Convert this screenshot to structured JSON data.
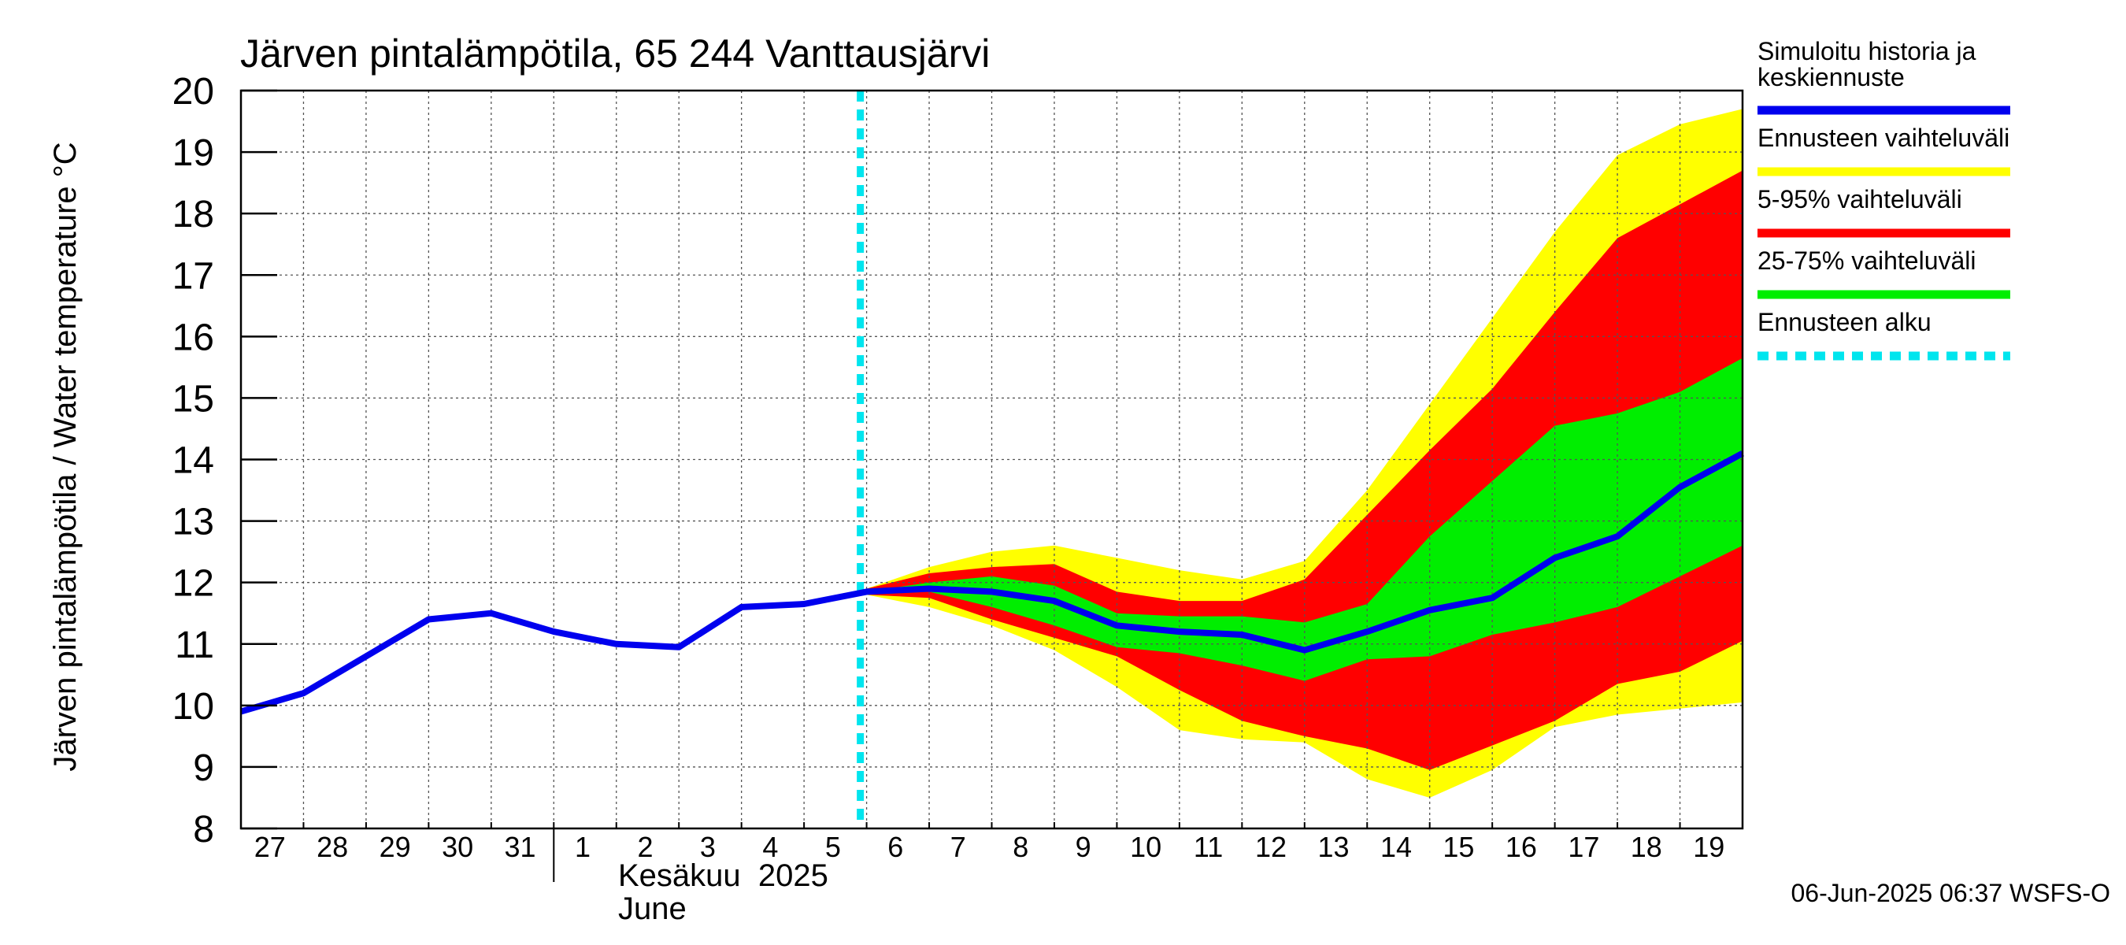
{
  "chart_data": {
    "type": "area",
    "title": "Järven pintalämpötila, 65 244 Vanttausjärvi",
    "ylabel": "Järven pintalämpötila / Water temperature °C",
    "ylim": [
      8,
      20
    ],
    "yticks": [
      8,
      9,
      10,
      11,
      12,
      13,
      14,
      15,
      16,
      17,
      18,
      19,
      20
    ],
    "xlim": [
      "2025-05-27",
      "2025-06-20"
    ],
    "x_tick_labels": [
      "27",
      "28",
      "29",
      "30",
      "31",
      "1",
      "2",
      "3",
      "4",
      "5",
      "6",
      "7",
      "8",
      "9",
      "10",
      "11",
      "12",
      "13",
      "14",
      "15",
      "16",
      "17",
      "18",
      "19"
    ],
    "month_label_fi": "Kesäkuu  2025",
    "month_label_en": "June",
    "forecast_start": "2025-06-06",
    "grid": true,
    "legend_position": "right",
    "timestamp": "06-Jun-2025 06:37 WSFS-O",
    "colors": {
      "history": "#0000ee",
      "range_full": "#ffff00",
      "range_5_95": "#ff0000",
      "range_25_75": "#00ee00",
      "forecast_start": "#00e5ee"
    },
    "series": [
      {
        "name": "Simuloitu historia ja keskiennuste",
        "key": "history",
        "x": [
          "2025-05-27",
          "2025-05-28",
          "2025-05-29",
          "2025-05-30",
          "2025-05-31",
          "2025-06-01",
          "2025-06-02",
          "2025-06-03",
          "2025-06-04",
          "2025-06-05",
          "2025-06-06",
          "2025-06-07",
          "2025-06-08",
          "2025-06-09",
          "2025-06-10",
          "2025-06-11",
          "2025-06-12",
          "2025-06-13",
          "2025-06-14",
          "2025-06-15",
          "2025-06-16",
          "2025-06-17",
          "2025-06-18",
          "2025-06-19",
          "2025-06-20"
        ],
        "values": [
          9.9,
          10.2,
          10.8,
          11.4,
          11.5,
          11.2,
          11.0,
          10.95,
          11.6,
          11.65,
          11.85,
          11.9,
          11.85,
          11.7,
          11.3,
          11.2,
          11.15,
          10.9,
          11.2,
          11.55,
          11.75,
          12.4,
          12.75,
          13.55,
          14.1
        ]
      },
      {
        "name": "Ennusteen vaihteluväli",
        "key": "range_full",
        "x": [
          "2025-06-06",
          "2025-06-07",
          "2025-06-08",
          "2025-06-09",
          "2025-06-10",
          "2025-06-11",
          "2025-06-12",
          "2025-06-13",
          "2025-06-14",
          "2025-06-15",
          "2025-06-16",
          "2025-06-17",
          "2025-06-18",
          "2025-06-19",
          "2025-06-20"
        ],
        "upper": [
          11.9,
          12.25,
          12.5,
          12.6,
          12.4,
          12.2,
          12.05,
          12.35,
          13.5,
          14.9,
          16.3,
          17.7,
          18.95,
          19.45,
          19.7
        ],
        "lower": [
          11.8,
          11.6,
          11.3,
          10.9,
          10.3,
          9.6,
          9.45,
          9.4,
          8.8,
          8.5,
          8.95,
          9.65,
          9.85,
          9.95,
          10.05
        ]
      },
      {
        "name": "5-95% vaihteluväli",
        "key": "range_5_95",
        "x": [
          "2025-06-06",
          "2025-06-07",
          "2025-06-08",
          "2025-06-09",
          "2025-06-10",
          "2025-06-11",
          "2025-06-12",
          "2025-06-13",
          "2025-06-14",
          "2025-06-15",
          "2025-06-16",
          "2025-06-17",
          "2025-06-18",
          "2025-06-19",
          "2025-06-20"
        ],
        "upper": [
          11.9,
          12.15,
          12.25,
          12.3,
          11.85,
          11.7,
          11.7,
          12.05,
          13.1,
          14.15,
          15.15,
          16.4,
          17.6,
          18.15,
          18.7
        ],
        "lower": [
          11.8,
          11.75,
          11.4,
          11.1,
          10.8,
          10.25,
          9.75,
          9.5,
          9.3,
          8.95,
          9.35,
          9.75,
          10.35,
          10.55,
          11.05
        ]
      },
      {
        "name": "25-75% vaihteluväli",
        "key": "range_25_75",
        "x": [
          "2025-06-06",
          "2025-06-07",
          "2025-06-08",
          "2025-06-09",
          "2025-06-10",
          "2025-06-11",
          "2025-06-12",
          "2025-06-13",
          "2025-06-14",
          "2025-06-15",
          "2025-06-16",
          "2025-06-17",
          "2025-06-18",
          "2025-06-19",
          "2025-06-20"
        ],
        "upper": [
          11.85,
          12.0,
          12.1,
          11.95,
          11.5,
          11.45,
          11.45,
          11.35,
          11.65,
          12.75,
          13.65,
          14.55,
          14.75,
          15.1,
          15.65
        ],
        "lower": [
          11.8,
          11.85,
          11.6,
          11.3,
          10.95,
          10.85,
          10.65,
          10.4,
          10.75,
          10.8,
          11.15,
          11.35,
          11.6,
          12.1,
          12.6
        ]
      },
      {
        "name": "Ennusteen alku",
        "key": "forecast_start"
      }
    ]
  }
}
